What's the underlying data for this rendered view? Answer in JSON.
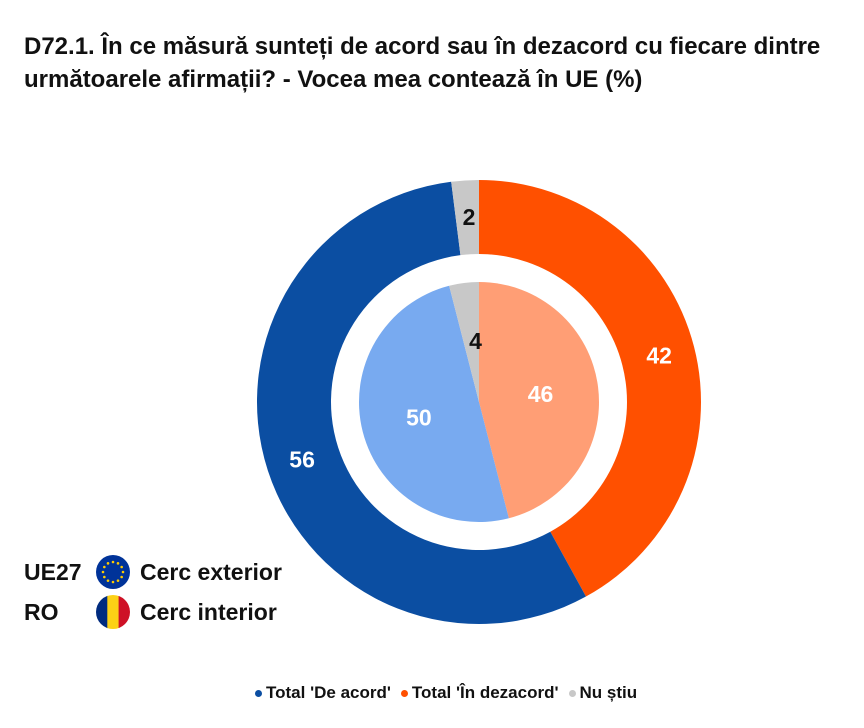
{
  "title": "D72.1. În ce măsură sunteți de acord sau în dezacord cu fiecare dintre următoarele afirmații? - Vocea mea contează în UE (%)",
  "chart_data": {
    "type": "pie",
    "title": "D72.1. În ce măsură sunteți de acord sau în dezacord cu fiecare dintre următoarele afirmații? - Vocea mea contează în UE (%)",
    "categories": [
      "Total 'De acord'",
      "Total 'În dezacord'",
      "Nu știu"
    ],
    "series": [
      {
        "name": "UE27",
        "ring": "outer",
        "values": [
          56,
          42,
          2
        ],
        "colors": [
          "#0b4ea2",
          "#ff5000",
          "#c8c8c8"
        ]
      },
      {
        "name": "RO",
        "ring": "inner",
        "values": [
          50,
          46,
          4
        ],
        "colors": [
          "#78aaf0",
          "#ff9e75",
          "#c8c8c8"
        ]
      }
    ],
    "legend": "bottom"
  },
  "key": [
    {
      "code": "UE27",
      "flag_icon": "eu-flag-icon",
      "label": "Cerc exterior"
    },
    {
      "code": "RO",
      "flag_icon": "ro-flag-icon",
      "label": "Cerc interior"
    }
  ],
  "legend_items": [
    {
      "label": "Total 'De acord'",
      "color": "#0b4ea2"
    },
    {
      "label": "Total 'În dezacord'",
      "color": "#ff5000"
    },
    {
      "label": "Nu știu",
      "color": "#c8c8c8"
    }
  ]
}
